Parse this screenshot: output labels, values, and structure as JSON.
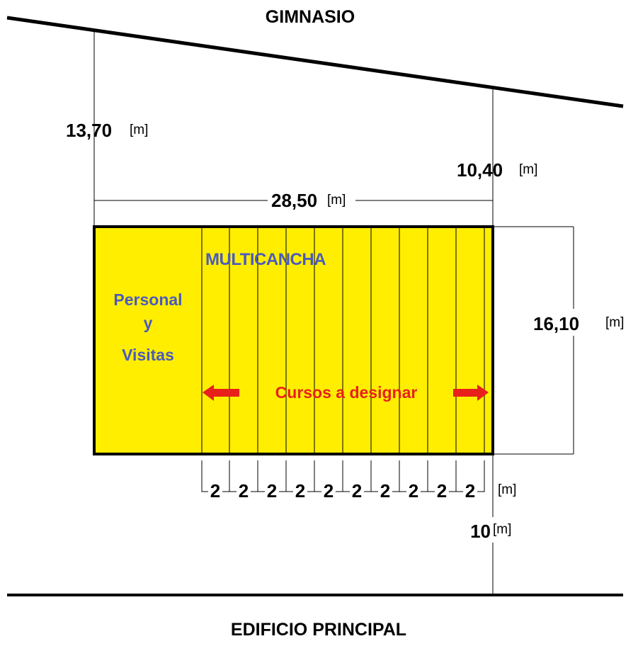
{
  "labels": {
    "top_building": "GIMNASIO",
    "bottom_building": "EDIFICIO PRINCIPAL",
    "court_name": "MULTICANCHA",
    "staff_line1": "Personal",
    "staff_line2": "y",
    "staff_line3": "Visitas",
    "courses": "Cursos a designar"
  },
  "dimensions": {
    "left_gap": "13,70",
    "right_gap": "10,40",
    "width": "28,50",
    "height": "16,10",
    "bottom_gap": "10",
    "unit": "[m]",
    "strip_width": "2",
    "strip_count": 10
  },
  "colors": {
    "court_fill": "#ffee00",
    "court_border": "#000000",
    "label_blue": "#4a5bbd",
    "arrow_red": "#e8201b"
  }
}
